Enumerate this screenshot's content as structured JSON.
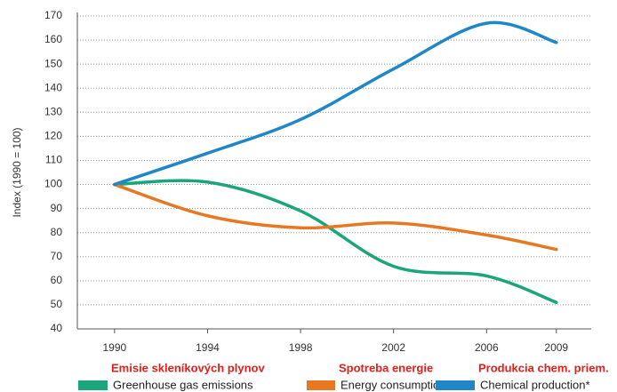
{
  "chart_data": {
    "type": "line",
    "y_label": "Index (1990 = 100)",
    "x": [
      1990,
      1994,
      1998,
      2002,
      2006,
      2009
    ],
    "xlim": [
      1988.4,
      2010.5
    ],
    "xticks": [
      1990,
      1994,
      1998,
      2002,
      2006,
      2009
    ],
    "ylim": [
      40,
      170
    ],
    "yticks": [
      40,
      50,
      60,
      70,
      80,
      90,
      100,
      110,
      120,
      130,
      140,
      150,
      160,
      170
    ],
    "grid": true,
    "series": [
      {
        "name": "Greenhouse gas emissions",
        "translation": "Emisie skleníkových plynov",
        "color": "#1aa57a",
        "values": [
          100,
          101,
          89,
          66,
          62,
          51
        ]
      },
      {
        "name": "Energy consumption",
        "translation": "Spotreba energie",
        "color": "#e87722",
        "values": [
          100,
          87,
          82,
          84,
          79,
          73
        ]
      },
      {
        "name": "Chemical production*",
        "translation": "Produkcia chem. priem.",
        "color": "#1f86c8",
        "values": [
          100,
          113,
          127,
          148,
          167,
          159
        ]
      }
    ]
  }
}
